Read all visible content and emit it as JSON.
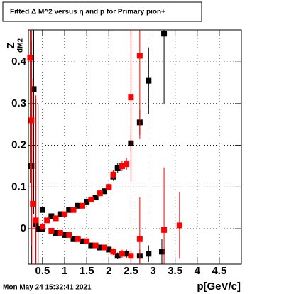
{
  "chart_data": {
    "type": "scatter",
    "title": "Fitted Δ M^2 versus η and p for Primary pion+",
    "x_label": "p[GeV/c]",
    "y_label": "Z",
    "y_label_subscript": "dM2",
    "timestamp": "Mon May 24 15:32:41 2021",
    "xlim": [
      0.18,
      5.0
    ],
    "ylim": [
      -0.085,
      0.477
    ],
    "xticks": [
      0.5,
      1,
      1.5,
      2,
      2.5,
      3,
      3.5,
      4,
      4.5
    ],
    "yticks": [
      0,
      0.1,
      0.2,
      0.3,
      0.4
    ],
    "grid": true,
    "series": [
      {
        "color": "#000000",
        "x": [
          0.25,
          0.3,
          0.35,
          0.4,
          0.5,
          0.7,
          0.9,
          1.1,
          1.3,
          1.5,
          1.7,
          1.9,
          2.0,
          2.1,
          2.2,
          2.5,
          2.7,
          2.9,
          3.25,
          0.5,
          0.8,
          1.0,
          1.2,
          1.4,
          1.6,
          1.8,
          2.0,
          2.2,
          2.4,
          2.7,
          2.9,
          3.2
        ],
        "values": [
          0.15,
          0.335,
          0.01,
          0.0,
          0.045,
          0.03,
          0.035,
          0.045,
          0.055,
          0.065,
          0.075,
          0.09,
          0.1,
          0.125,
          0.145,
          0.205,
          0.255,
          0.355,
          0.468,
          0.0,
          -0.01,
          -0.015,
          -0.025,
          -0.03,
          -0.04,
          -0.045,
          -0.05,
          -0.065,
          -0.06,
          -0.065,
          -0.06,
          -0.055
        ],
        "errors": [
          0.3,
          0.3,
          0.3,
          0.3,
          0.005,
          0.004,
          0.004,
          0.004,
          0.005,
          0.005,
          0.006,
          0.007,
          0.008,
          0.01,
          0.012,
          0.02,
          0.03,
          0.08,
          0.17,
          0.004,
          0.004,
          0.004,
          0.005,
          0.005,
          0.005,
          0.006,
          0.007,
          0.008,
          0.01,
          0.015,
          0.02,
          0.03
        ]
      },
      {
        "color": "#ff0000",
        "x": [
          0.22,
          0.25,
          0.28,
          0.35,
          0.6,
          0.8,
          1.0,
          1.2,
          1.4,
          1.6,
          1.8,
          2.0,
          2.1,
          2.3,
          2.4,
          2.5,
          2.7,
          0.5,
          0.7,
          0.9,
          1.1,
          1.3,
          1.5,
          1.7,
          1.9,
          2.1,
          2.3,
          2.5,
          2.7,
          3.25,
          3.6
        ],
        "values": [
          0.41,
          0.26,
          0.06,
          0.02,
          0.02,
          0.025,
          0.035,
          0.045,
          0.055,
          0.07,
          0.085,
          0.1,
          0.13,
          0.15,
          0.155,
          0.315,
          0.415,
          0.005,
          -0.005,
          -0.01,
          -0.015,
          -0.025,
          -0.03,
          -0.04,
          -0.045,
          -0.055,
          -0.06,
          -0.065,
          -0.025,
          -0.003,
          0.008
        ],
        "errors": [
          0.3,
          0.3,
          0.3,
          0.3,
          0.004,
          0.004,
          0.004,
          0.005,
          0.005,
          0.006,
          0.007,
          0.008,
          0.01,
          0.012,
          0.015,
          0.2,
          0.2,
          0.004,
          0.004,
          0.004,
          0.005,
          0.005,
          0.005,
          0.006,
          0.007,
          0.008,
          0.01,
          0.015,
          0.1,
          0.15,
          0.08
        ]
      }
    ]
  }
}
